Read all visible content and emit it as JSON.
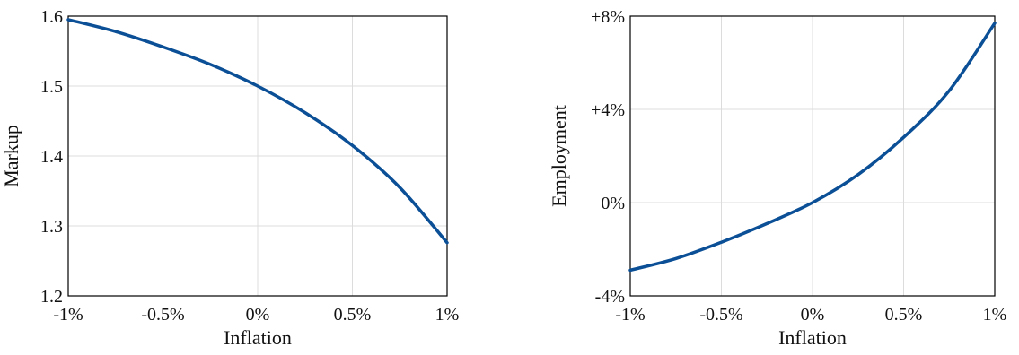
{
  "colors": {
    "line": "#0b4f96",
    "grid": "#dcdcdc"
  },
  "chart_data": [
    {
      "type": "line",
      "title": "",
      "xlabel": "Inflation",
      "ylabel": "Markup",
      "xlim": [
        -1,
        1
      ],
      "ylim": [
        1.2,
        1.6
      ],
      "x_ticks": [
        -1,
        -0.5,
        0,
        0.5,
        1
      ],
      "x_tick_labels": [
        "-1%",
        "-0.5%",
        "0%",
        "0.5%",
        "1%"
      ],
      "y_ticks": [
        1.2,
        1.3,
        1.4,
        1.5,
        1.6
      ],
      "y_tick_labels": [
        "1.2",
        "1.3",
        "1.4",
        "1.5",
        "1.6"
      ],
      "grid": true,
      "series": [
        {
          "x": [
            -1,
            -0.75,
            -0.5,
            -0.25,
            0,
            0.25,
            0.5,
            0.75,
            1
          ],
          "y": [
            1.595,
            1.578,
            1.556,
            1.531,
            1.5,
            1.462,
            1.415,
            1.355,
            1.276
          ]
        }
      ]
    },
    {
      "type": "line",
      "title": "",
      "xlabel": "Inflation",
      "ylabel": "Employment",
      "xlim": [
        -1,
        1
      ],
      "ylim": [
        -4,
        8
      ],
      "x_ticks": [
        -1,
        -0.5,
        0,
        0.5,
        1
      ],
      "x_tick_labels": [
        "-1%",
        "-0.5%",
        "0%",
        "0.5%",
        "1%"
      ],
      "y_ticks": [
        -4,
        0,
        4,
        8
      ],
      "y_tick_labels": [
        "-4%",
        "0%",
        "+4%",
        "+8%"
      ],
      "grid": true,
      "series": [
        {
          "x": [
            -1,
            -0.75,
            -0.5,
            -0.25,
            0,
            0.25,
            0.5,
            0.75,
            1
          ],
          "y": [
            -2.9,
            -2.4,
            -1.7,
            -0.9,
            0.0,
            1.2,
            2.8,
            4.8,
            7.7
          ]
        }
      ]
    }
  ]
}
